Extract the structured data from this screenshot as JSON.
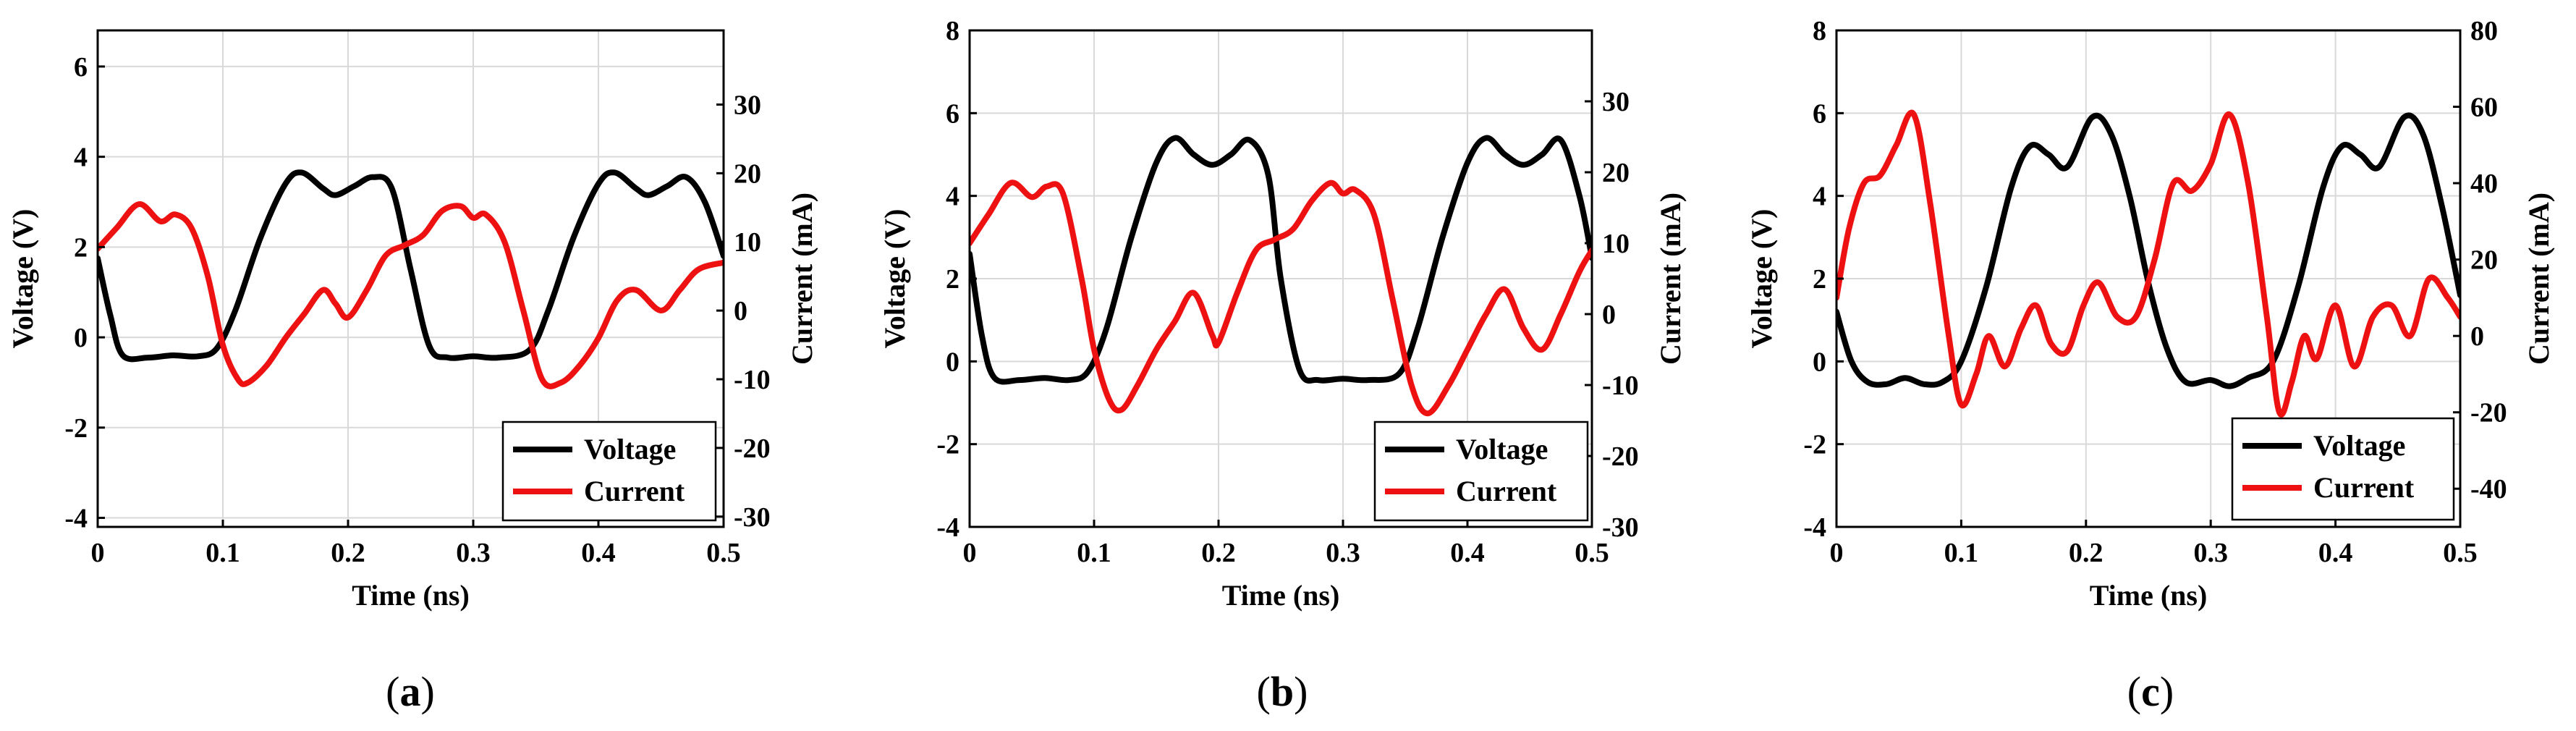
{
  "chart_data": [
    {
      "type": "line",
      "caption": "a",
      "xlabel": "Time (ns)",
      "ylabel": "Voltage (V)",
      "y2label": "Current (mA)",
      "xlim": [
        0,
        0.5
      ],
      "ylim": [
        -4.2,
        6.8
      ],
      "y2lim": [
        -31.5,
        40.8
      ],
      "xticks": [
        "0",
        "0.1",
        "0.2",
        "0.3",
        "0.4",
        "0.5"
      ],
      "xtick_values": [
        0,
        0.1,
        0.2,
        0.3,
        0.4,
        0.5
      ],
      "yticks": [
        "-4",
        "-2",
        "0",
        "2",
        "4",
        "6"
      ],
      "ytick_values": [
        -4,
        -2,
        0,
        2,
        4,
        6
      ],
      "y2ticks": [
        "-30",
        "-20",
        "-10",
        "0",
        "10",
        "20",
        "30"
      ],
      "y2tick_values": [
        -30,
        -20,
        -10,
        0,
        10,
        20,
        30
      ],
      "grid": true,
      "legend": "bottom-right",
      "series": [
        {
          "name": "Voltage",
          "axis": "left",
          "color": "#000000",
          "x": [
            0,
            0.01,
            0.02,
            0.04,
            0.06,
            0.08,
            0.095,
            0.11,
            0.13,
            0.15,
            0.163,
            0.18,
            0.19,
            0.205,
            0.22,
            0.235,
            0.25,
            0.265,
            0.28,
            0.3,
            0.32,
            0.345,
            0.36,
            0.38,
            0.4,
            0.413,
            0.43,
            0.44,
            0.455,
            0.47,
            0.485,
            0.5
          ],
          "y": [
            1.75,
            0.5,
            -0.4,
            -0.45,
            -0.4,
            -0.42,
            -0.25,
            0.6,
            2.2,
            3.4,
            3.65,
            3.3,
            3.15,
            3.35,
            3.55,
            3.3,
            1.5,
            -0.2,
            -0.45,
            -0.42,
            -0.45,
            -0.28,
            0.6,
            2.2,
            3.4,
            3.65,
            3.3,
            3.15,
            3.35,
            3.55,
            3.0,
            1.8
          ]
        },
        {
          "name": "Current",
          "axis": "right",
          "color": "#ee1111",
          "x": [
            0,
            0.015,
            0.033,
            0.05,
            0.062,
            0.075,
            0.088,
            0.1,
            0.112,
            0.12,
            0.135,
            0.15,
            0.165,
            0.18,
            0.19,
            0.2,
            0.215,
            0.23,
            0.245,
            0.26,
            0.275,
            0.29,
            0.3,
            0.31,
            0.325,
            0.34,
            0.355,
            0.37,
            0.385,
            0.4,
            0.415,
            0.43,
            0.45,
            0.465,
            0.48,
            0.5
          ],
          "y": [
            9,
            12,
            15.5,
            13,
            14,
            12,
            5,
            -5,
            -10,
            -10.5,
            -8,
            -4,
            -0.5,
            3,
            1,
            -1,
            3,
            8,
            9.5,
            11,
            14.5,
            15.2,
            13.5,
            14,
            10,
            0,
            -10,
            -10.5,
            -8,
            -4,
            1.5,
            3,
            0,
            3,
            6,
            7
          ]
        }
      ]
    },
    {
      "type": "line",
      "caption": "b",
      "xlabel": "Time (ns)",
      "ylabel": "Voltage (V)",
      "y2label": "Current (mA)",
      "xlim": [
        0,
        0.5
      ],
      "ylim": [
        -4,
        8
      ],
      "y2lim": [
        -30,
        40
      ],
      "xticks": [
        "0",
        "0.1",
        "0.2",
        "0.3",
        "0.4",
        "0.5"
      ],
      "xtick_values": [
        0,
        0.1,
        0.2,
        0.3,
        0.4,
        0.5
      ],
      "yticks": [
        "-4",
        "-2",
        "0",
        "2",
        "4",
        "6",
        "8"
      ],
      "ytick_values": [
        -4,
        -2,
        0,
        2,
        4,
        6,
        8
      ],
      "y2ticks": [
        "-30",
        "-20",
        "-10",
        "0",
        "10",
        "20",
        "30"
      ],
      "y2tick_values": [
        -30,
        -20,
        -10,
        0,
        10,
        20,
        30
      ],
      "grid": true,
      "legend": "bottom-right",
      "series": [
        {
          "name": "Voltage",
          "axis": "left",
          "color": "#000000",
          "x": [
            0,
            0.01,
            0.02,
            0.04,
            0.06,
            0.08,
            0.095,
            0.11,
            0.13,
            0.15,
            0.165,
            0.18,
            0.195,
            0.21,
            0.225,
            0.24,
            0.25,
            0.265,
            0.28,
            0.3,
            0.32,
            0.345,
            0.36,
            0.38,
            0.4,
            0.415,
            0.43,
            0.445,
            0.46,
            0.475,
            0.49,
            0.5
          ],
          "y": [
            2.6,
            0.6,
            -0.4,
            -0.45,
            -0.4,
            -0.45,
            -0.25,
            0.8,
            3.0,
            4.8,
            5.4,
            5.0,
            4.75,
            5.0,
            5.35,
            4.5,
            2.0,
            -0.2,
            -0.45,
            -0.42,
            -0.45,
            -0.3,
            0.8,
            3.0,
            4.8,
            5.4,
            5.0,
            4.75,
            5.0,
            5.35,
            4.0,
            2.5
          ]
        },
        {
          "name": "Current",
          "axis": "right",
          "color": "#ee1111",
          "x": [
            0,
            0.015,
            0.033,
            0.05,
            0.062,
            0.075,
            0.09,
            0.1,
            0.112,
            0.122,
            0.135,
            0.15,
            0.165,
            0.18,
            0.195,
            0.2,
            0.215,
            0.23,
            0.245,
            0.26,
            0.275,
            0.29,
            0.3,
            0.31,
            0.325,
            0.34,
            0.355,
            0.368,
            0.385,
            0.4,
            0.415,
            0.43,
            0.445,
            0.46,
            0.475,
            0.49,
            0.5
          ],
          "y": [
            10,
            14,
            18.5,
            16.5,
            18,
            17,
            5,
            -5,
            -12,
            -13.5,
            -10,
            -5,
            -1,
            3,
            -3,
            -4,
            3,
            9,
            10.5,
            12,
            16,
            18.5,
            17,
            17.5,
            14,
            2,
            -10,
            -14,
            -10,
            -5,
            0,
            3.5,
            -2,
            -5,
            0,
            6,
            9
          ]
        }
      ]
    },
    {
      "type": "line",
      "caption": "c",
      "xlabel": "Time (ns)",
      "ylabel": "Voltage (V)",
      "y2label": "Current (mA)",
      "xlim": [
        0,
        0.5
      ],
      "ylim": [
        -4,
        8
      ],
      "y2lim": [
        -50,
        80
      ],
      "xticks": [
        "0",
        "0.1",
        "0.2",
        "0.3",
        "0.4",
        "0.5"
      ],
      "xtick_values": [
        0,
        0.1,
        0.2,
        0.3,
        0.4,
        0.5
      ],
      "yticks": [
        "-4",
        "-2",
        "0",
        "2",
        "4",
        "6",
        "8"
      ],
      "ytick_values": [
        -4,
        -2,
        0,
        2,
        4,
        6,
        8
      ],
      "y2ticks": [
        "-40",
        "-20",
        "0",
        "20",
        "40",
        "60",
        "80"
      ],
      "y2tick_values": [
        -40,
        -20,
        0,
        20,
        40,
        60,
        80
      ],
      "grid": true,
      "legend": "bottom-right",
      "series": [
        {
          "name": "Voltage",
          "axis": "left",
          "color": "#000000",
          "x": [
            0,
            0.012,
            0.025,
            0.04,
            0.055,
            0.07,
            0.085,
            0.1,
            0.12,
            0.14,
            0.155,
            0.17,
            0.185,
            0.205,
            0.22,
            0.235,
            0.25,
            0.265,
            0.28,
            0.3,
            0.315,
            0.33,
            0.35,
            0.37,
            0.39,
            0.405,
            0.42,
            0.435,
            0.455,
            0.47,
            0.485,
            0.5
          ],
          "y": [
            1.2,
            0.0,
            -0.5,
            -0.55,
            -0.4,
            -0.55,
            -0.5,
            0.0,
            1.8,
            4.2,
            5.2,
            5.0,
            4.7,
            5.9,
            5.5,
            4.0,
            1.9,
            0.3,
            -0.5,
            -0.45,
            -0.6,
            -0.4,
            0.0,
            1.8,
            4.2,
            5.2,
            5.0,
            4.7,
            5.9,
            5.5,
            3.8,
            1.6
          ]
        },
        {
          "name": "Current",
          "axis": "right",
          "color": "#ee1111",
          "x": [
            0,
            0.01,
            0.022,
            0.035,
            0.048,
            0.062,
            0.075,
            0.09,
            0.1,
            0.112,
            0.122,
            0.135,
            0.148,
            0.16,
            0.172,
            0.185,
            0.198,
            0.21,
            0.225,
            0.24,
            0.255,
            0.27,
            0.285,
            0.3,
            0.315,
            0.33,
            0.345,
            0.355,
            0.365,
            0.375,
            0.385,
            0.4,
            0.415,
            0.43,
            0.445,
            0.46,
            0.475,
            0.49,
            0.5
          ],
          "y": [
            10,
            28,
            40,
            42,
            50,
            58,
            35,
            0,
            -18,
            -10,
            0,
            -8,
            2,
            8,
            -2,
            -4,
            8,
            14,
            5,
            5,
            20,
            40,
            38,
            45,
            58,
            40,
            5,
            -20,
            -12,
            0,
            -6,
            8,
            -8,
            5,
            8,
            0,
            15,
            10,
            5
          ]
        }
      ]
    }
  ]
}
